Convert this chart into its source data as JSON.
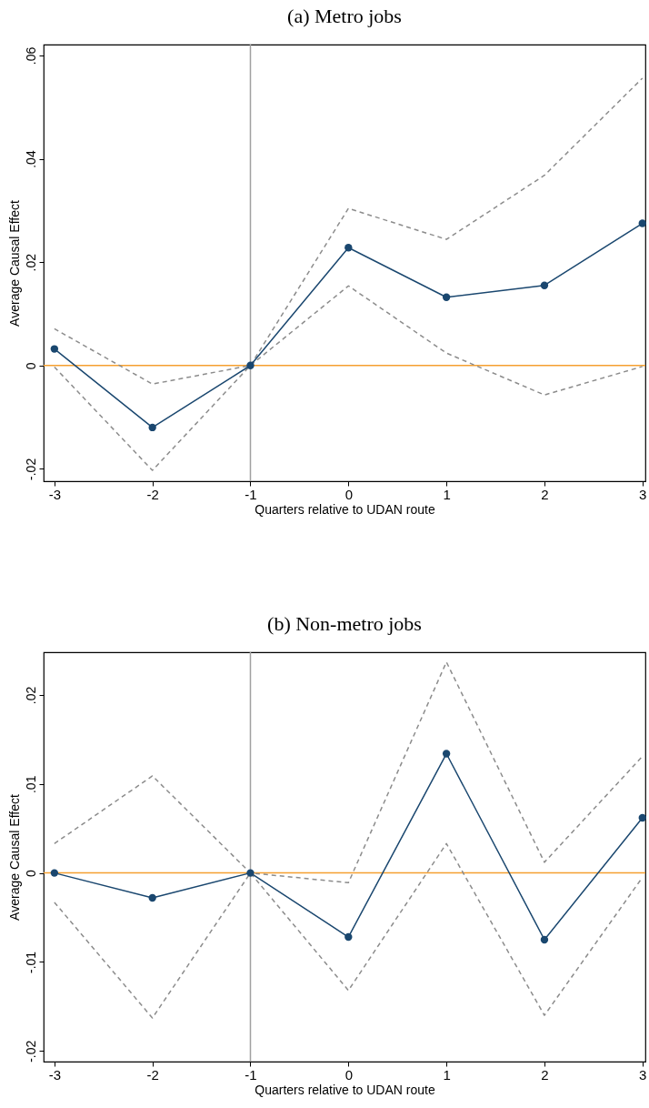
{
  "chart_data": [
    {
      "type": "line",
      "title": "(a) Metro jobs",
      "xlabel": "Quarters relative to UDAN route",
      "ylabel": "Average Causal Effect",
      "x": [
        -3,
        -2,
        -1,
        0,
        1,
        2,
        3
      ],
      "xlim": [
        -3.11,
        3.03
      ],
      "xticks": [
        -3,
        -2,
        -1,
        0,
        1,
        2,
        3
      ],
      "ylim": [
        -0.0224,
        0.0621
      ],
      "yticks": [
        {
          "value": -0.02,
          "label": "-.02"
        },
        0,
        {
          "value": 0.02,
          "label": ".02"
        },
        {
          "value": 0.04,
          "label": ".04"
        },
        {
          "value": 0.06,
          "label": ".06"
        }
      ],
      "ref_lines": [
        {
          "axis": "y",
          "value": 0,
          "color": "#f5a030"
        },
        {
          "axis": "x",
          "value": -1,
          "color": "#a0a0a0"
        }
      ],
      "series": [
        {
          "color": "#8c8c8c",
          "line_style": "dashed",
          "marker": "none",
          "values": [
            0.0071,
            -0.0036,
            0,
            0.0304,
            0.0244,
            0.0368,
            0.0556
          ]
        },
        {
          "color": "#8c8c8c",
          "line_style": "dashed",
          "marker": "none",
          "values": [
            -0.0003,
            -0.0203,
            0,
            0.0154,
            0.0024,
            -0.0057,
            -0.0002
          ]
        },
        {
          "color": "#1a476f",
          "line_style": "solid",
          "marker": "circle",
          "values": [
            0.0032,
            -0.012,
            0,
            0.0228,
            0.0132,
            0.0155,
            0.0275
          ]
        }
      ]
    },
    {
      "type": "line",
      "title": "(b) Non-metro jobs",
      "xlabel": "Quarters relative to UDAN route",
      "ylabel": "Average Causal Effect",
      "x": [
        -3,
        -2,
        -1,
        0,
        1,
        2,
        3
      ],
      "xlim": [
        -3.11,
        3.03
      ],
      "xticks": [
        -3,
        -2,
        -1,
        0,
        1,
        2,
        3
      ],
      "ylim": [
        -0.0212,
        0.0248
      ],
      "yticks": [
        {
          "value": -0.02,
          "label": "-.02"
        },
        {
          "value": -0.01,
          "label": "-.01"
        },
        0,
        {
          "value": 0.01,
          "label": ".01"
        },
        {
          "value": 0.02,
          "label": ".02"
        }
      ],
      "ref_lines": [
        {
          "axis": "y",
          "value": 0,
          "color": "#f5a030"
        },
        {
          "axis": "x",
          "value": -1,
          "color": "#a0a0a0"
        }
      ],
      "series": [
        {
          "color": "#8c8c8c",
          "line_style": "dashed",
          "marker": "none",
          "values": [
            0.0033,
            0.0109,
            0,
            -0.0011,
            0.0237,
            0.0012,
            0.0131
          ]
        },
        {
          "color": "#8c8c8c",
          "line_style": "dashed",
          "marker": "none",
          "values": [
            -0.0033,
            -0.0163,
            0,
            -0.0132,
            0.0033,
            -0.016,
            -0.0005
          ]
        },
        {
          "color": "#1a476f",
          "line_style": "solid",
          "marker": "circle",
          "values": [
            0,
            -0.0028,
            0,
            -0.0072,
            0.0134,
            -0.0075,
            0.0062
          ]
        }
      ]
    }
  ]
}
